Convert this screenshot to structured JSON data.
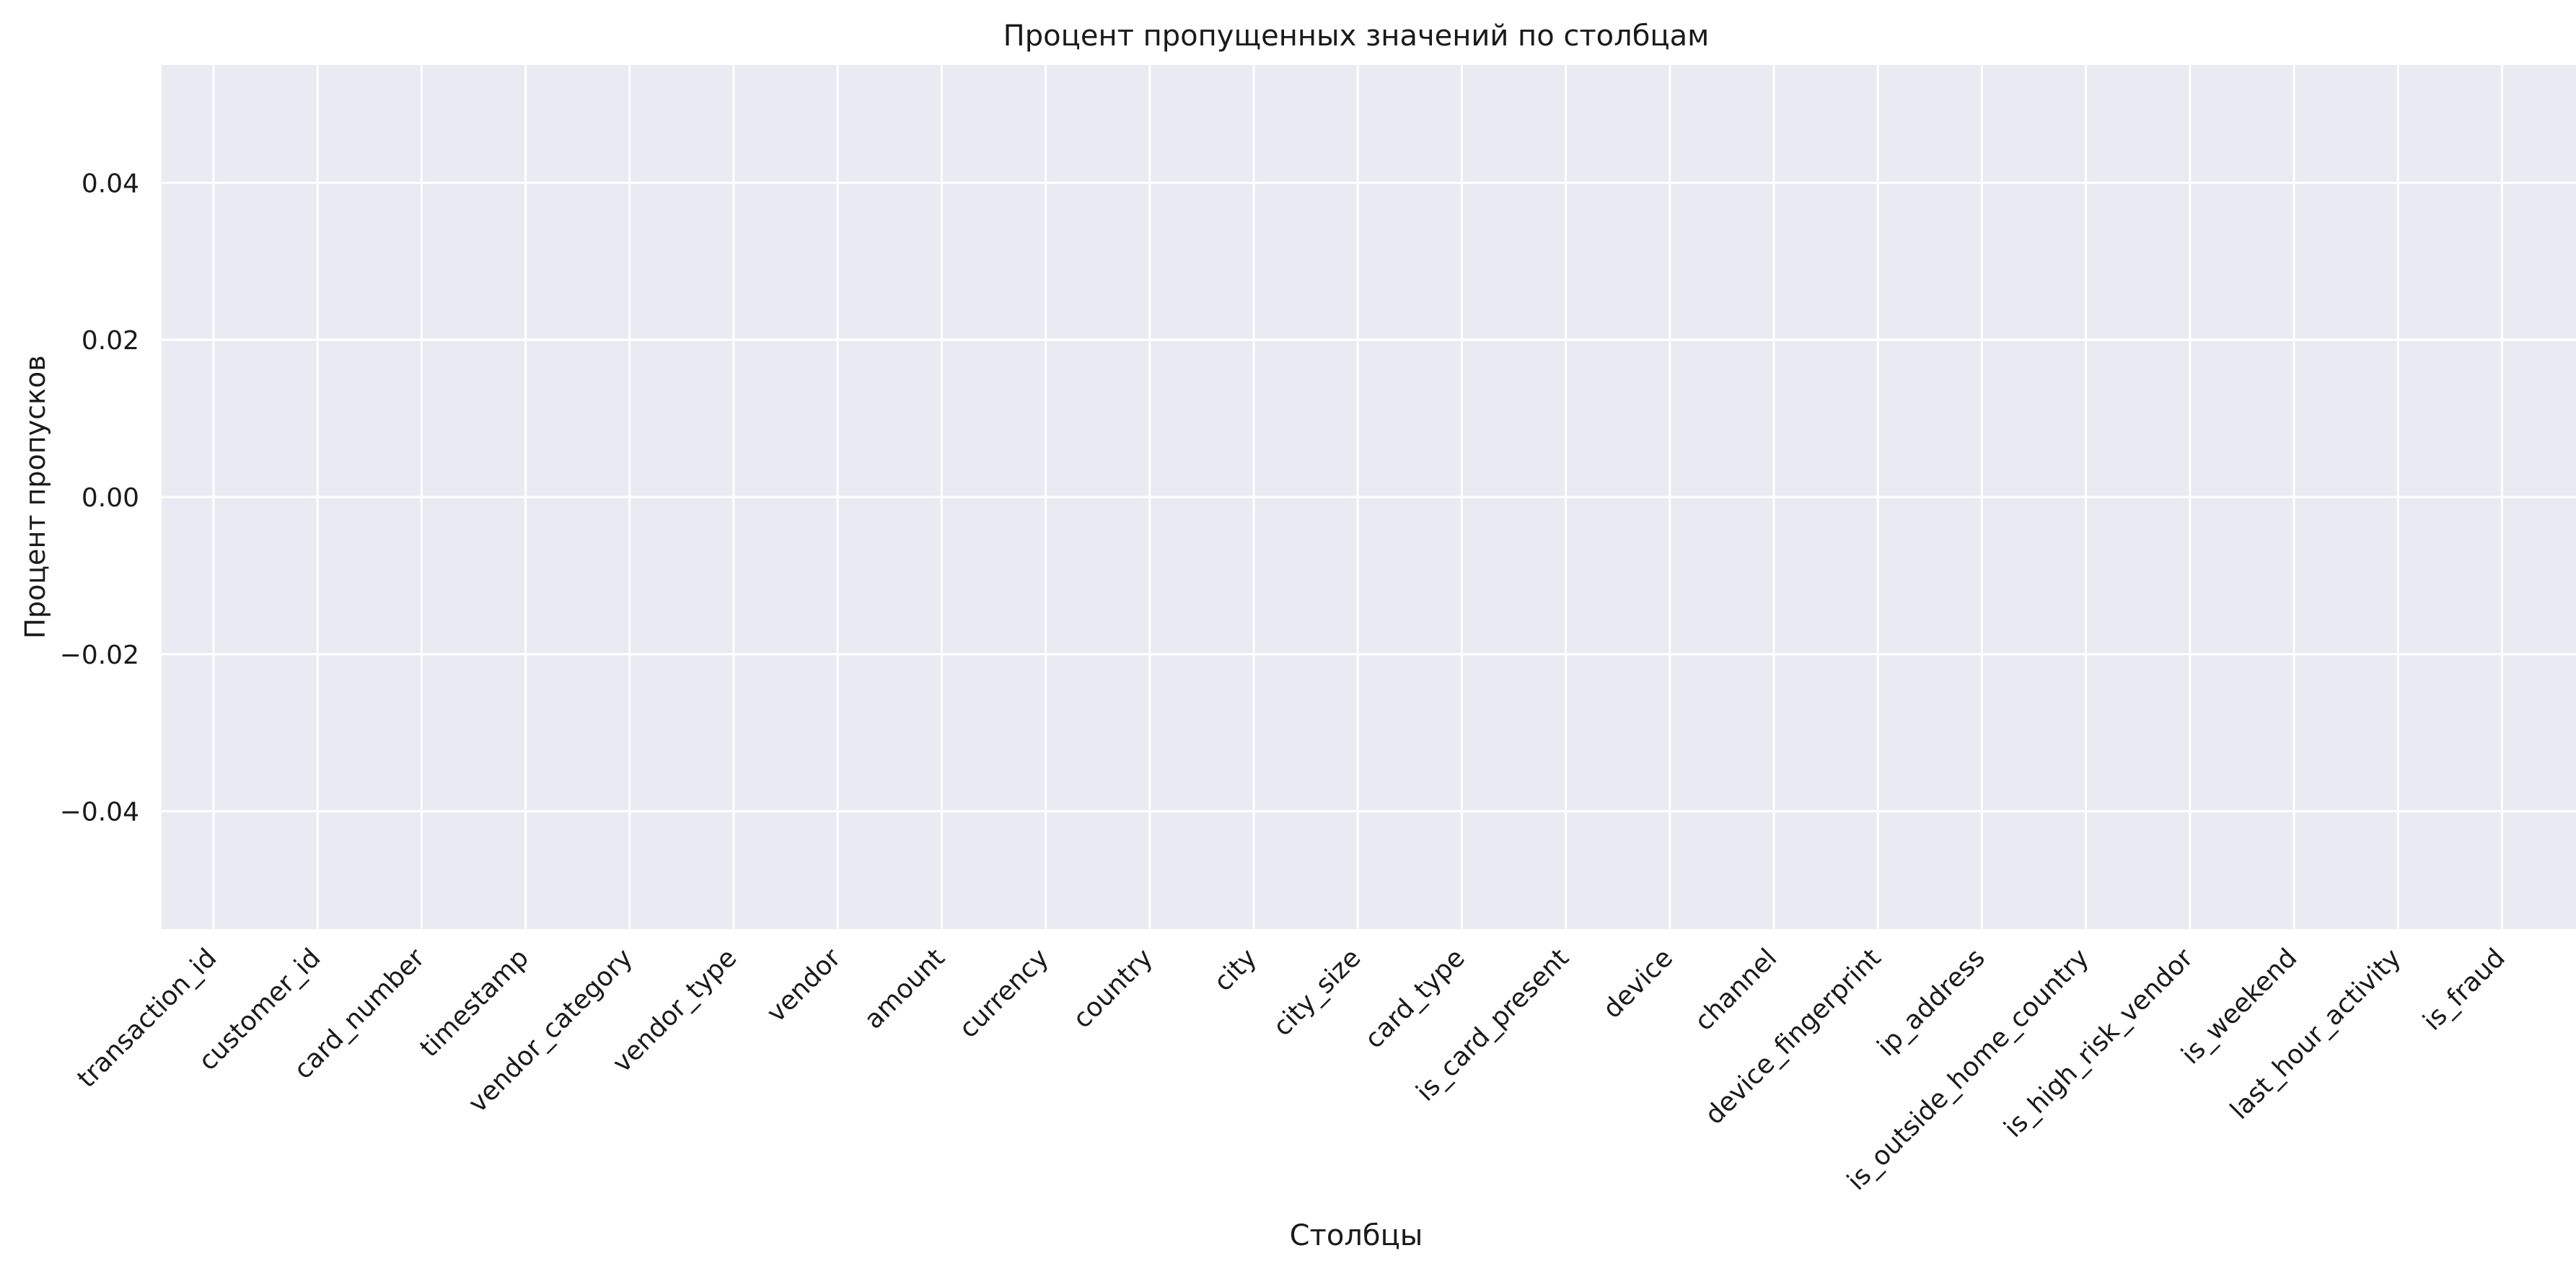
{
  "chart_data": {
    "type": "bar",
    "title": "Процент пропущенных значений по столбцам",
    "xlabel": "Столбцы",
    "ylabel": "Процент пропусков",
    "categories": [
      "transaction_id",
      "customer_id",
      "card_number",
      "timestamp",
      "vendor_category",
      "vendor_type",
      "vendor",
      "amount",
      "currency",
      "country",
      "city",
      "city_size",
      "card_type",
      "is_card_present",
      "device",
      "channel",
      "device_fingerprint",
      "ip_address",
      "is_outside_home_country",
      "is_high_risk_vendor",
      "is_weekend",
      "last_hour_activity",
      "is_fraud"
    ],
    "values": [
      0,
      0,
      0,
      0,
      0,
      0,
      0,
      0,
      0,
      0,
      0,
      0,
      0,
      0,
      0,
      0,
      0,
      0,
      0,
      0,
      0,
      0,
      0
    ],
    "yticks": [
      "−0.04",
      "−0.02",
      "0.00",
      "0.02",
      "0.04"
    ],
    "ytick_values": [
      -0.04,
      -0.02,
      0.0,
      0.02,
      0.04
    ],
    "ylim": [
      -0.055,
      0.055
    ],
    "grid": true,
    "legend": "none",
    "colors": {
      "plot_background": "#eaeaf2",
      "grid": "#ffffff",
      "text": "#1a1a1a",
      "bar": "#4c72b0"
    }
  }
}
